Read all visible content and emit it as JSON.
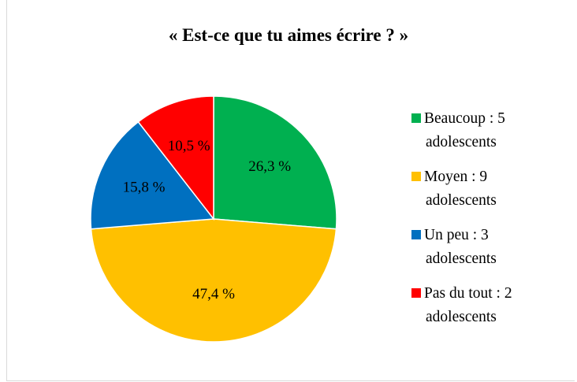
{
  "chart_data": {
    "type": "pie",
    "title": "« Est-ce que tu aimes écrire ? »",
    "categories": [
      "Beaucoup : 5 adolescents",
      "Moyen : 9 adolescents",
      "Un peu : 3 adolescents",
      "Pas du tout : 2 adolescents"
    ],
    "values": [
      26.3,
      47.4,
      15.8,
      10.5
    ],
    "value_labels": [
      "26,3 %",
      "47,4 %",
      "15,8 %",
      "10,5 %"
    ],
    "colors": [
      "#00b050",
      "#ffc000",
      "#0070c0",
      "#ff0000"
    ],
    "legend": "right"
  }
}
